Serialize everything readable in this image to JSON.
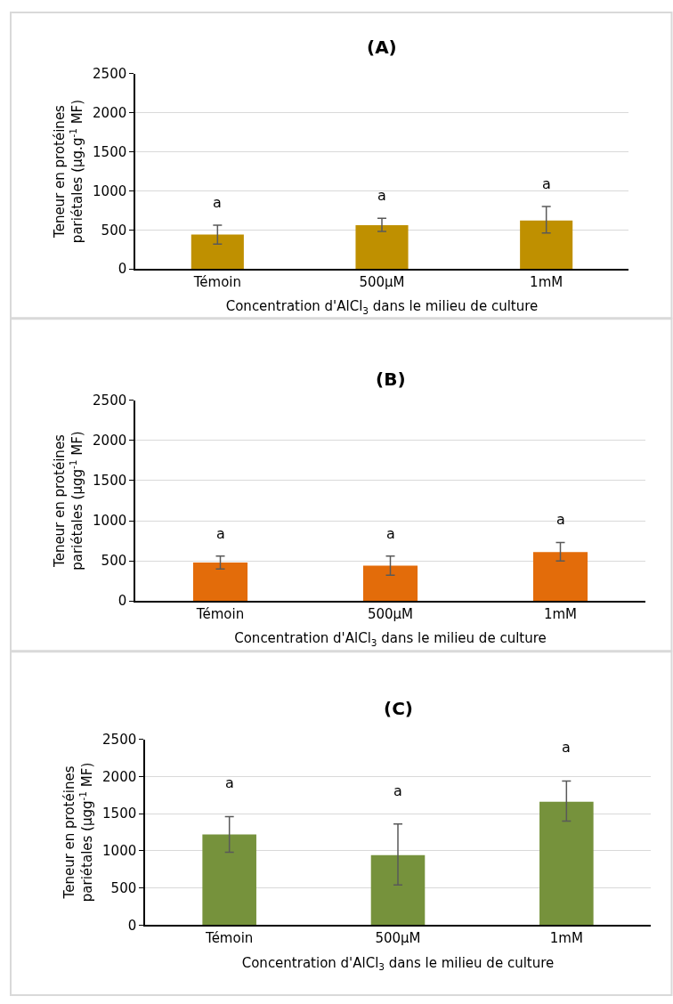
{
  "chart_data": [
    {
      "type": "bar",
      "title": "(A)",
      "xlabel": "Concentration d'AlCl$_{3}$ dans le milieu de culture",
      "ylabel": "Teneur en protéines pariétales (µg.g$^{-1}$ MF)",
      "categories": [
        "Témoin",
        "500µM",
        "1mM"
      ],
      "values": [
        440,
        560,
        620
      ],
      "errors": [
        [
          320,
          560
        ],
        [
          480,
          650
        ],
        [
          460,
          800
        ]
      ],
      "color": "#bf9000",
      "ylim": [
        0,
        2500
      ],
      "yticks": [
        0,
        500,
        1000,
        1500,
        2000,
        2500
      ],
      "grid": "y",
      "annotations": [
        "a",
        "a",
        "a"
      ]
    },
    {
      "type": "bar",
      "title": "(B)",
      "xlabel": "Concentration d'AlCl$_{3}$ dans le milieu de culture",
      "ylabel": "Teneur en protéines pariétales (µgg$^{-1}$ MF)",
      "categories": [
        "Témoin",
        "500µM",
        "1mM"
      ],
      "values": [
        480,
        440,
        610
      ],
      "errors": [
        [
          400,
          560
        ],
        [
          320,
          560
        ],
        [
          500,
          730
        ]
      ],
      "color": "#e36c0a",
      "ylim": [
        0,
        2500
      ],
      "yticks": [
        0,
        500,
        1000,
        1500,
        2000,
        2500
      ],
      "grid": "y",
      "annotations": [
        "a",
        "a",
        "a"
      ]
    },
    {
      "type": "bar",
      "title": "(C)",
      "xlabel": "Concentration d'AlCl$_{3}$ dans le milieu de culture",
      "ylabel": "Teneur en protéines pariétales (µgg$^{-1}$ MF)",
      "categories": [
        "Témoin",
        "500µM",
        "1mM"
      ],
      "values": [
        1220,
        940,
        1660
      ],
      "errors": [
        [
          980,
          1460
        ],
        [
          540,
          1360
        ],
        [
          1400,
          1940
        ]
      ],
      "color": "#76923c",
      "ylim": [
        0,
        2500
      ],
      "yticks": [
        0,
        500,
        1000,
        1500,
        2000,
        2500
      ],
      "grid": "y",
      "annotations": [
        "a",
        "a",
        "a"
      ]
    }
  ]
}
